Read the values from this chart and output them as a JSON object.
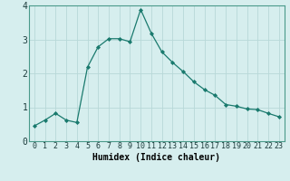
{
  "x": [
    0,
    1,
    2,
    3,
    4,
    5,
    6,
    7,
    8,
    9,
    10,
    11,
    12,
    13,
    14,
    15,
    16,
    17,
    18,
    19,
    20,
    21,
    22,
    23
  ],
  "y": [
    0.45,
    0.62,
    0.82,
    0.62,
    0.55,
    2.18,
    2.78,
    3.02,
    3.02,
    2.93,
    3.88,
    3.18,
    2.63,
    2.32,
    2.05,
    1.75,
    1.52,
    1.35,
    1.08,
    1.03,
    0.95,
    0.93,
    0.82,
    0.72
  ],
  "xlabel": "Humidex (Indice chaleur)",
  "ylim": [
    0,
    4
  ],
  "xlim": [
    -0.5,
    23.5
  ],
  "yticks": [
    0,
    1,
    2,
    3,
    4
  ],
  "xticks": [
    0,
    1,
    2,
    3,
    4,
    5,
    6,
    7,
    8,
    9,
    10,
    11,
    12,
    13,
    14,
    15,
    16,
    17,
    18,
    19,
    20,
    21,
    22,
    23
  ],
  "line_color": "#1a7a6e",
  "marker": "D",
  "marker_size": 2.0,
  "bg_color": "#d6eeee",
  "grid_color": "#b8d8d8",
  "axes_bg": "#d6eeee",
  "xlabel_fontsize": 7,
  "tick_fontsize": 6,
  "ytick_fontsize": 7
}
